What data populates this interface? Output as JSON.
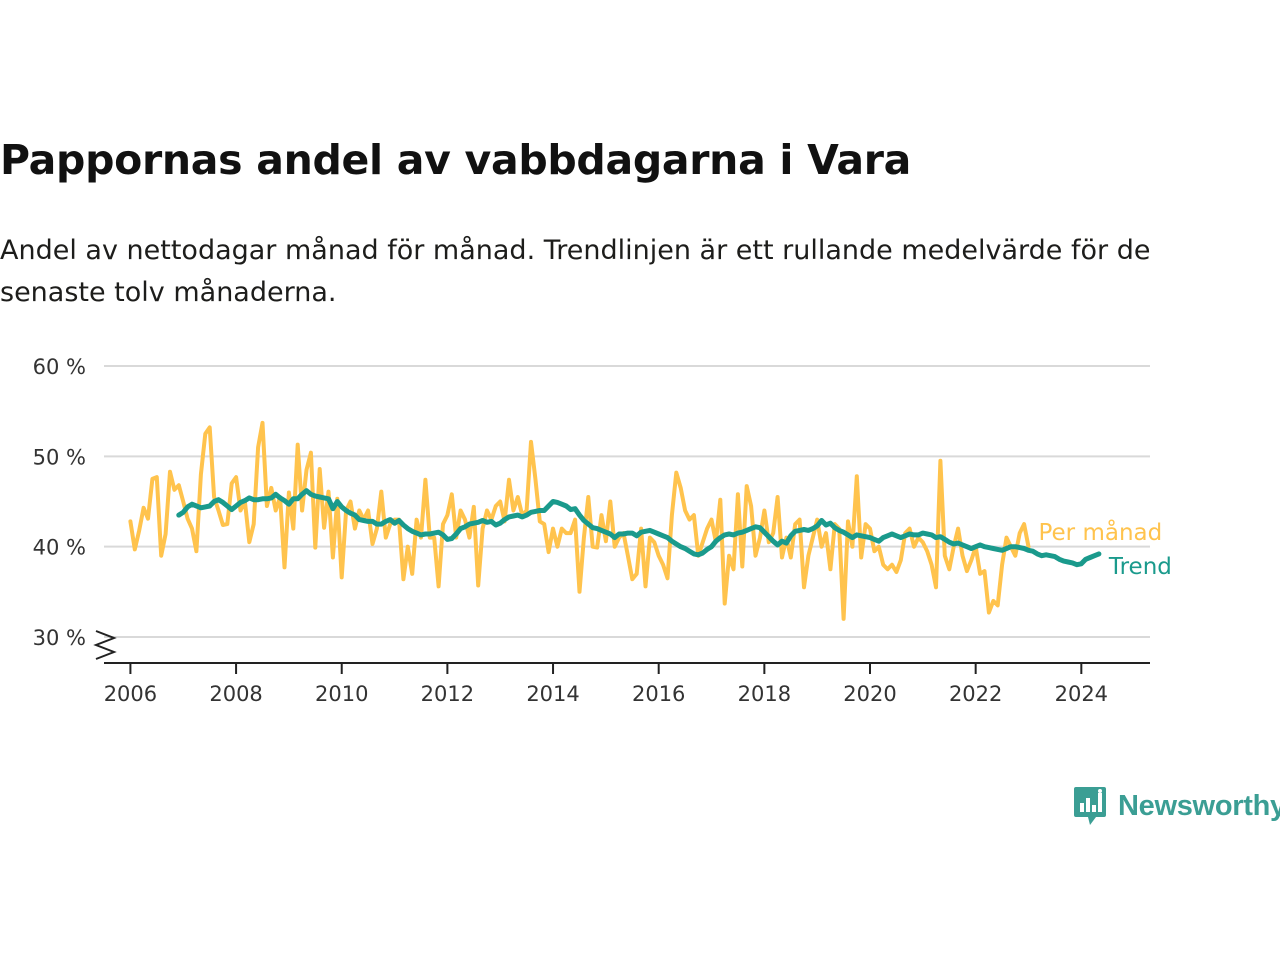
{
  "title": "Pappornas andel av vabbdagarna i Vara",
  "subtitle": "Andel av nettodagar månad för månad. Trendlinjen är ett rullande medelvärde för de senaste tolv månaderna.",
  "brand": {
    "name": "Newsworthy",
    "color": "#3b9e94"
  },
  "chart_data": {
    "type": "line",
    "x_axis": {
      "min": 2005.5,
      "max": 2025.3,
      "ticks": [
        2006,
        2008,
        2010,
        2012,
        2014,
        2016,
        2018,
        2020,
        2022,
        2024
      ],
      "tick_labels": [
        "2006",
        "2008",
        "2010",
        "2012",
        "2014",
        "2016",
        "2018",
        "2020",
        "2022",
        "2024"
      ]
    },
    "y_axis": {
      "min": 27,
      "max": 60,
      "ticks": [
        30,
        40,
        50,
        60
      ],
      "tick_labels": [
        "30 %",
        "40 %",
        "50 %",
        "60 %"
      ],
      "axis_break": true
    },
    "grid": true,
    "series": [
      {
        "name": "Per månad",
        "color": "#ffc34d",
        "start": 2006.0,
        "step": 0.0833333,
        "values": [
          42.8,
          39.7,
          41.8,
          44.3,
          43.1,
          47.5,
          47.7,
          39.0,
          41.4,
          48.3,
          46.3,
          46.8,
          45.0,
          43.1,
          42.0,
          39.5,
          48.0,
          52.5,
          53.2,
          45.5,
          44.0,
          42.4,
          42.5,
          47.0,
          47.7,
          44.0,
          45.0,
          40.5,
          42.5,
          51.0,
          53.7,
          44.5,
          46.5,
          44.0,
          45.5,
          37.7,
          46.0,
          42.0,
          51.3,
          44.0,
          48.5,
          50.4,
          39.9,
          48.6,
          42.1,
          46.1,
          38.8,
          45.3,
          36.6,
          44.0,
          45.0,
          42.0,
          44.0,
          43.0,
          44.0,
          40.3,
          42.0,
          46.1,
          41.0,
          42.5,
          43.0,
          43.0,
          36.4,
          40.0,
          37.0,
          43.0,
          41.0,
          47.4,
          41.0,
          41.0,
          35.6,
          42.5,
          43.5,
          45.8,
          41.0,
          44.0,
          43.0,
          41.0,
          44.4,
          35.7,
          42.0,
          44.0,
          43.0,
          44.5,
          45.0,
          42.8,
          47.4,
          44.0,
          45.5,
          43.5,
          44.0,
          51.6,
          47.5,
          42.8,
          42.5,
          39.4,
          42.0,
          40.0,
          42.0,
          41.5,
          41.5,
          43.0,
          35.0,
          41.0,
          45.5,
          40.0,
          39.9,
          43.5,
          40.6,
          45.0,
          40.0,
          41.0,
          41.5,
          39.0,
          36.4,
          37.0,
          42.0,
          35.6,
          41.0,
          40.5,
          39.0,
          38.0,
          36.5,
          43.5,
          48.2,
          46.5,
          44.0,
          43.0,
          43.5,
          39.0,
          40.5,
          42.0,
          43.0,
          40.5,
          45.2,
          33.7,
          39.0,
          37.5,
          45.8,
          37.8,
          46.7,
          44.5,
          39.0,
          41.0,
          44.0,
          40.5,
          41.5,
          45.5,
          38.8,
          41.0,
          38.8,
          42.5,
          43.0,
          35.5,
          39.0,
          41.0,
          43.0,
          40.0,
          41.5,
          37.5,
          42.5,
          42.0,
          32.0,
          42.8,
          40.0,
          47.8,
          38.8,
          42.5,
          42.0,
          39.5,
          40.0,
          38.0,
          37.5,
          38.0,
          37.2,
          38.5,
          41.5,
          42.0,
          40.0,
          41.0,
          40.5,
          39.5,
          38.0,
          35.5,
          49.5,
          39.0,
          37.5,
          40.0,
          42.0,
          39.0,
          37.3,
          38.5,
          40.0,
          37.0,
          37.3,
          32.7,
          34.0,
          33.5,
          38.0,
          41.0,
          40.0,
          39.0,
          41.5,
          42.5,
          40.0
        ]
      },
      {
        "name": "Trend",
        "color": "#1a9a8c",
        "start": 2006.9167,
        "step": 0.0833333,
        "values": [
          43.5,
          43.8,
          44.4,
          44.7,
          44.5,
          44.3,
          44.4,
          44.5,
          45.0,
          45.2,
          44.9,
          44.5,
          44.1,
          44.5,
          44.9,
          45.1,
          45.4,
          45.2,
          45.2,
          45.3,
          45.3,
          45.4,
          45.8,
          45.4,
          45.1,
          44.7,
          45.3,
          45.3,
          45.8,
          46.2,
          45.8,
          45.6,
          45.5,
          45.4,
          45.3,
          44.2,
          45.0,
          44.4,
          44.0,
          43.7,
          43.5,
          43.0,
          42.9,
          42.8,
          42.8,
          42.5,
          42.5,
          42.8,
          43.0,
          42.6,
          42.9,
          42.4,
          42.0,
          41.7,
          41.5,
          41.3,
          41.4,
          41.4,
          41.5,
          41.6,
          41.3,
          40.8,
          40.9,
          41.4,
          42.0,
          42.2,
          42.5,
          42.6,
          42.7,
          42.9,
          42.7,
          42.8,
          42.4,
          42.6,
          43.0,
          43.3,
          43.4,
          43.5,
          43.3,
          43.5,
          43.8,
          43.9,
          44.0,
          44.0,
          44.5,
          45.0,
          44.9,
          44.7,
          44.5,
          44.1,
          44.2,
          43.5,
          42.9,
          42.5,
          42.1,
          42.0,
          41.8,
          41.6,
          41.4,
          41.0,
          41.4,
          41.4,
          41.5,
          41.5,
          41.2,
          41.6,
          41.7,
          41.8,
          41.6,
          41.4,
          41.2,
          41.0,
          40.6,
          40.3,
          40.0,
          39.8,
          39.5,
          39.2,
          39.1,
          39.3,
          39.7,
          40.0,
          40.6,
          41.0,
          41.3,
          41.4,
          41.3,
          41.5,
          41.6,
          41.8,
          42.0,
          42.2,
          42.1,
          41.6,
          41.1,
          40.6,
          40.2,
          40.6,
          40.4,
          41.2,
          41.7,
          41.8,
          41.9,
          41.8,
          42.0,
          42.3,
          42.9,
          42.4,
          42.6,
          42.1,
          41.8,
          41.6,
          41.3,
          41.0,
          41.3,
          41.2,
          41.1,
          41.0,
          40.8,
          40.6,
          41.0,
          41.2,
          41.4,
          41.2,
          41.0,
          41.2,
          41.4,
          41.3,
          41.3,
          41.5,
          41.4,
          41.3,
          41.0,
          41.1,
          40.8,
          40.5,
          40.3,
          40.4,
          40.2,
          40.0,
          39.8,
          40.0,
          40.2,
          40.0,
          39.9,
          39.8,
          39.7,
          39.6,
          39.8,
          40.0,
          40.0,
          39.9,
          39.8,
          39.6,
          39.5,
          39.2,
          39.0,
          39.1,
          39.0,
          38.9,
          38.6,
          38.4,
          38.3,
          38.2,
          38.0,
          38.1,
          38.6,
          38.8,
          39.0,
          39.2
        ]
      }
    ]
  }
}
